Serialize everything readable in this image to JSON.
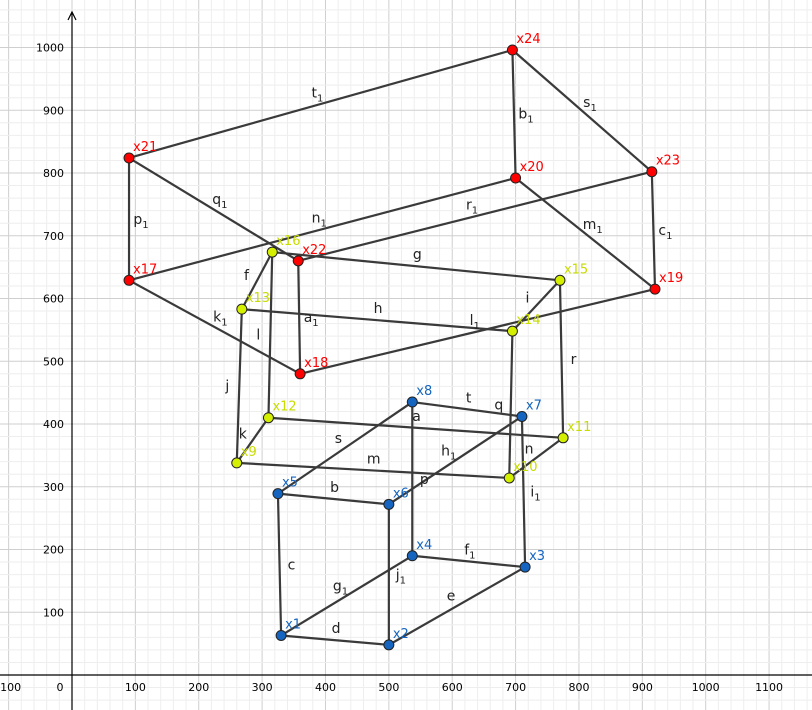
{
  "colors": {
    "blue": "#1565c0",
    "yellow": "#d4f000",
    "red": "#ff0000",
    "yellow_label": "#c8dc00",
    "edge": "#3a3a3a"
  },
  "axes": {
    "x_ticks": [
      "-100",
      "0",
      "100",
      "200",
      "300",
      "400",
      "500",
      "600",
      "700",
      "800",
      "900",
      "1000",
      "1100"
    ],
    "y_ticks": [
      "100",
      "200",
      "300",
      "400",
      "500",
      "600",
      "700",
      "800",
      "900",
      "1000"
    ],
    "xlim": [
      -115,
      1180
    ],
    "ylim": [
      -50,
      1050
    ]
  },
  "points": [
    {
      "name": "x1",
      "x": 330,
      "y": 63,
      "group": "blue"
    },
    {
      "name": "x2",
      "x": 500,
      "y": 48,
      "group": "blue"
    },
    {
      "name": "x3",
      "x": 715,
      "y": 172,
      "group": "blue"
    },
    {
      "name": "x4",
      "x": 537,
      "y": 190,
      "group": "blue"
    },
    {
      "name": "x5",
      "x": 325,
      "y": 289,
      "group": "blue"
    },
    {
      "name": "x6",
      "x": 500,
      "y": 272,
      "group": "blue"
    },
    {
      "name": "x7",
      "x": 710,
      "y": 412,
      "group": "blue"
    },
    {
      "name": "x8",
      "x": 537,
      "y": 435,
      "group": "blue"
    },
    {
      "name": "x9",
      "x": 260,
      "y": 338,
      "group": "yellow"
    },
    {
      "name": "x10",
      "x": 690,
      "y": 314,
      "group": "yellow"
    },
    {
      "name": "x11",
      "x": 775,
      "y": 378,
      "group": "yellow"
    },
    {
      "name": "x12",
      "x": 310,
      "y": 410,
      "group": "yellow"
    },
    {
      "name": "x13",
      "x": 268,
      "y": 583,
      "group": "yellow"
    },
    {
      "name": "x14",
      "x": 695,
      "y": 548,
      "group": "yellow"
    },
    {
      "name": "x15",
      "x": 770,
      "y": 629,
      "group": "yellow"
    },
    {
      "name": "x16",
      "x": 316,
      "y": 674,
      "group": "yellow"
    },
    {
      "name": "x17",
      "x": 90,
      "y": 629,
      "group": "red"
    },
    {
      "name": "x18",
      "x": 360,
      "y": 480,
      "group": "red"
    },
    {
      "name": "x19",
      "x": 920,
      "y": 615,
      "group": "red"
    },
    {
      "name": "x20",
      "x": 700,
      "y": 792,
      "group": "red"
    },
    {
      "name": "x21",
      "x": 90,
      "y": 824,
      "group": "red"
    },
    {
      "name": "x22",
      "x": 357,
      "y": 660,
      "group": "red"
    },
    {
      "name": "x23",
      "x": 915,
      "y": 802,
      "group": "red"
    },
    {
      "name": "x24",
      "x": 695,
      "y": 996,
      "group": "red"
    }
  ],
  "edges": [
    {
      "from": "x1",
      "to": "x2",
      "label": "d",
      "sub": ""
    },
    {
      "from": "x2",
      "to": "x3",
      "label": "e",
      "sub": ""
    },
    {
      "from": "x3",
      "to": "x4",
      "label": "f",
      "sub": "1"
    },
    {
      "from": "x4",
      "to": "x1",
      "label": "g",
      "sub": "1"
    },
    {
      "from": "x1",
      "to": "x5",
      "label": "c",
      "sub": ""
    },
    {
      "from": "x2",
      "to": "x6",
      "label": "j",
      "sub": "1"
    },
    {
      "from": "x3",
      "to": "x7",
      "label": "i",
      "sub": "1"
    },
    {
      "from": "x4",
      "to": "x8",
      "label": "p",
      "sub": ""
    },
    {
      "from": "x5",
      "to": "x6",
      "label": "b",
      "sub": ""
    },
    {
      "from": "x6",
      "to": "x7",
      "label": "h",
      "sub": "1"
    },
    {
      "from": "x7",
      "to": "x8",
      "label": "t",
      "sub": ""
    },
    {
      "from": "x8",
      "to": "x5",
      "label": "s",
      "sub": ""
    },
    {
      "from": "x9",
      "to": "x10",
      "label": "m",
      "sub": ""
    },
    {
      "from": "x10",
      "to": "x11",
      "label": "n",
      "sub": ""
    },
    {
      "from": "x11",
      "to": "x12",
      "label": "a",
      "sub": ""
    },
    {
      "from": "x12",
      "to": "x9",
      "label": "k",
      "sub": ""
    },
    {
      "from": "x9",
      "to": "x13",
      "label": "j",
      "sub": ""
    },
    {
      "from": "x10",
      "to": "x14",
      "label": "q",
      "sub": ""
    },
    {
      "from": "x11",
      "to": "x15",
      "label": "r",
      "sub": ""
    },
    {
      "from": "x12",
      "to": "x16",
      "label": "l",
      "sub": ""
    },
    {
      "from": "x13",
      "to": "x14",
      "label": "h",
      "sub": ""
    },
    {
      "from": "x14",
      "to": "x15",
      "label": "i",
      "sub": ""
    },
    {
      "from": "x15",
      "to": "x16",
      "label": "g",
      "sub": ""
    },
    {
      "from": "x16",
      "to": "x13",
      "label": "f",
      "sub": ""
    },
    {
      "from": "x17",
      "to": "x18",
      "label": "k",
      "sub": "1"
    },
    {
      "from": "x18",
      "to": "x19",
      "label": "l",
      "sub": "1"
    },
    {
      "from": "x19",
      "to": "x20",
      "label": "m",
      "sub": "1"
    },
    {
      "from": "x20",
      "to": "x17",
      "label": "n",
      "sub": "1"
    },
    {
      "from": "x17",
      "to": "x21",
      "label": "p",
      "sub": "1"
    },
    {
      "from": "x18",
      "to": "x22",
      "label": "a",
      "sub": "1"
    },
    {
      "from": "x19",
      "to": "x23",
      "label": "c",
      "sub": "1"
    },
    {
      "from": "x20",
      "to": "x24",
      "label": "b",
      "sub": "1"
    },
    {
      "from": "x21",
      "to": "x22",
      "label": "q",
      "sub": "1"
    },
    {
      "from": "x22",
      "to": "x23",
      "label": "r",
      "sub": "1"
    },
    {
      "from": "x23",
      "to": "x24",
      "label": "s",
      "sub": "1"
    },
    {
      "from": "x24",
      "to": "x21",
      "label": "t",
      "sub": "1"
    }
  ]
}
